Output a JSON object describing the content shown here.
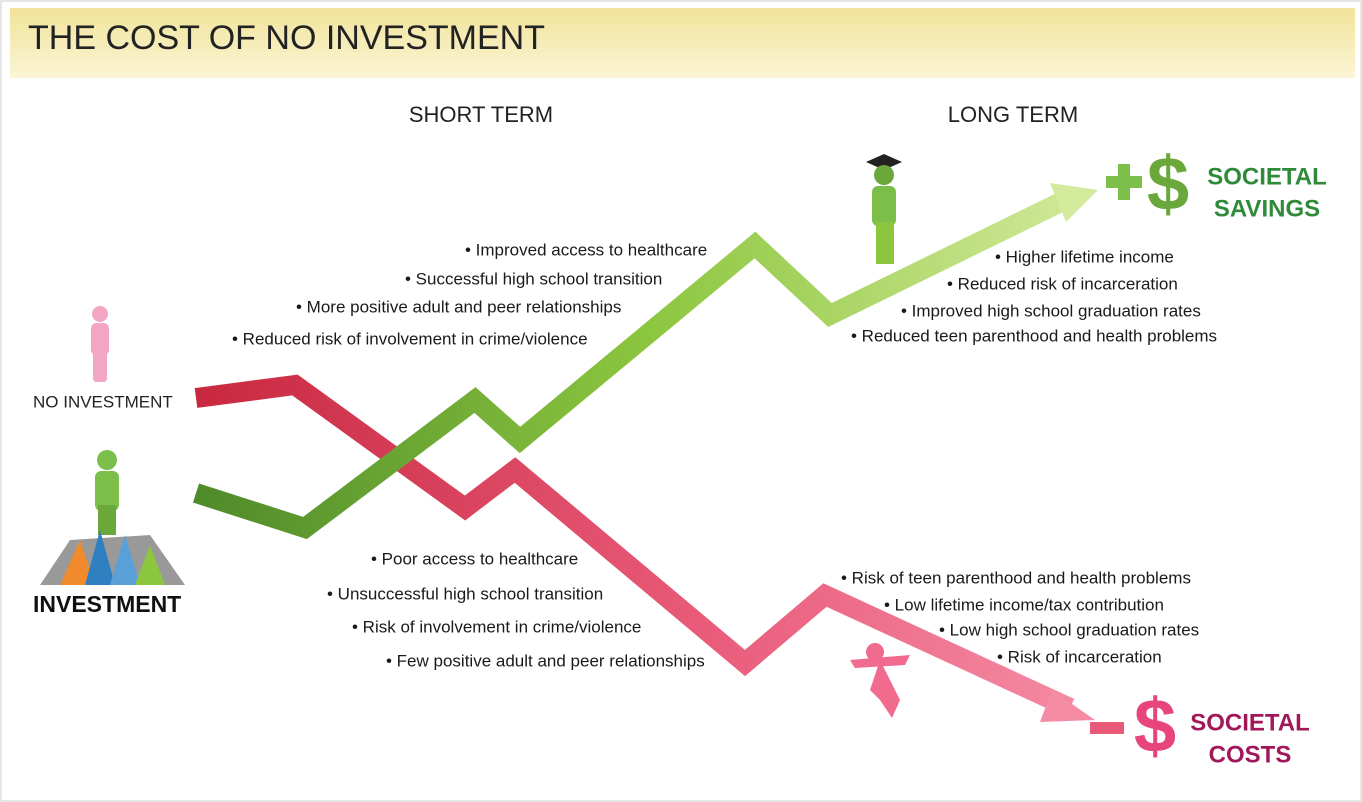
{
  "header": {
    "title": "THE COST OF NO INVESTMENT"
  },
  "columns": [
    "SHORT TERM",
    "LONG TERM"
  ],
  "left_labels": {
    "no_investment": "NO INVESTMENT",
    "investment": "INVESTMENT"
  },
  "outcomes": {
    "savings": {
      "symbol": "$",
      "label": [
        "SOCIETAL",
        "SAVINGS"
      ]
    },
    "costs": {
      "symbol": "$",
      "label": [
        "SOCIETAL",
        "COSTS"
      ]
    }
  },
  "short_term_positive": [
    "• Improved access to healthcare",
    "• Successful high school transition",
    "• More positive adult and peer relationships",
    "• Reduced risk of involvement in crime/violence"
  ],
  "long_term_positive": [
    "• Higher lifetime income",
    "• Reduced risk of incarceration",
    "• Improved high school graduation rates",
    "• Reduced teen parenthood and health problems"
  ],
  "short_term_negative": [
    "• Poor access to healthcare",
    "• Unsuccessful high school transition",
    "• Risk of involvement in crime/violence",
    "• Few positive adult and peer relationships"
  ],
  "long_term_negative": [
    "• Risk of teen parenthood and health problems",
    "• Low lifetime income/tax contribution",
    "• Low high school graduation rates",
    "• Risk of incarceration"
  ]
}
